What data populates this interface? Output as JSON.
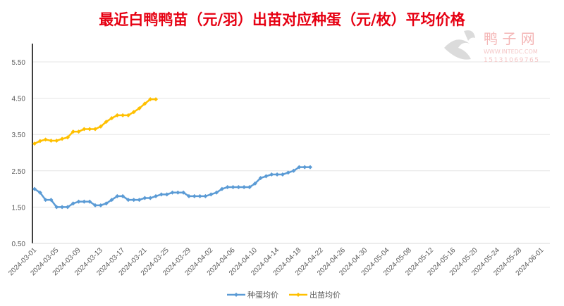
{
  "chart_data": {
    "type": "line",
    "title": "最近白鸭鸭苗（元/羽）出苗对应种蛋（元/枚）平均价格",
    "xlabel": "",
    "ylabel": "",
    "ylim": [
      0.5,
      6.0
    ],
    "y_ticks": [
      "0.50",
      "1.50",
      "2.50",
      "3.50",
      "4.50",
      "5.50"
    ],
    "x_start": "2024-03-01",
    "x_ticks": [
      "2024-03-01",
      "2024-03-05",
      "2024-03-09",
      "2024-03-13",
      "2024-03-17",
      "2024-03-21",
      "2024-03-25",
      "2024-03-29",
      "2024-04-02",
      "2024-04-06",
      "2024-04-10",
      "2024-04-14",
      "2024-04-18",
      "2024-04-22",
      "2024-04-26",
      "2024-04-30",
      "2024-05-04",
      "2024-05-08",
      "2024-05-12",
      "2024-05-16",
      "2024-05-20",
      "2024-05-24",
      "2024-05-28",
      "2024-06-01"
    ],
    "grid": true,
    "legend_position": "bottom",
    "series": [
      {
        "name": "种蛋均价",
        "color": "#5b9bd5",
        "values": [
          2.0,
          1.9,
          1.7,
          1.7,
          1.5,
          1.5,
          1.5,
          1.6,
          1.65,
          1.65,
          1.65,
          1.55,
          1.55,
          1.6,
          1.7,
          1.8,
          1.8,
          1.7,
          1.7,
          1.7,
          1.75,
          1.75,
          1.8,
          1.85,
          1.85,
          1.9,
          1.9,
          1.9,
          1.8,
          1.8,
          1.8,
          1.8,
          1.85,
          1.9,
          2.0,
          2.05,
          2.05,
          2.05,
          2.05,
          2.05,
          2.15,
          2.3,
          2.35,
          2.4,
          2.4,
          2.4,
          2.45,
          2.5,
          2.6,
          2.6,
          2.6
        ]
      },
      {
        "name": "出苗均价",
        "color": "#ffc000",
        "values": [
          3.25,
          3.32,
          3.36,
          3.33,
          3.33,
          3.38,
          3.42,
          3.58,
          3.58,
          3.65,
          3.65,
          3.65,
          3.72,
          3.85,
          3.95,
          4.03,
          4.03,
          4.03,
          4.12,
          4.22,
          4.35,
          4.47,
          4.47
        ]
      }
    ]
  },
  "watermark": {
    "name": "鸭子网",
    "url": "WWW.INTEDC.COM",
    "phone": "15131069765"
  }
}
